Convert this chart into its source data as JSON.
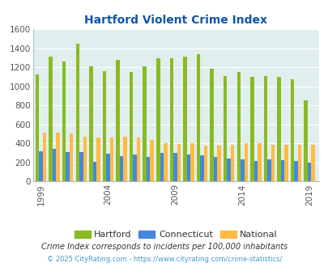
{
  "title": "Hartford Violent Crime Index",
  "years": [
    1999,
    2000,
    2001,
    2002,
    2003,
    2004,
    2005,
    2006,
    2007,
    2008,
    2009,
    2010,
    2011,
    2012,
    2013,
    2014,
    2015,
    2016,
    2017,
    2018,
    2019
  ],
  "hartford": [
    1130,
    1310,
    1260,
    1450,
    1210,
    1160,
    1280,
    1150,
    1210,
    1300,
    1300,
    1310,
    1340,
    1190,
    1110,
    1155,
    1100,
    1105,
    1100,
    1075,
    855
  ],
  "connecticut": [
    320,
    345,
    310,
    310,
    210,
    290,
    270,
    280,
    260,
    305,
    300,
    280,
    275,
    260,
    245,
    230,
    215,
    230,
    225,
    215,
    195
  ],
  "national": [
    510,
    510,
    505,
    475,
    465,
    465,
    475,
    465,
    440,
    405,
    395,
    400,
    375,
    380,
    390,
    405,
    400,
    390,
    385,
    390,
    385
  ],
  "hartford_color": "#88bb22",
  "connecticut_color": "#4488dd",
  "national_color": "#ffbb44",
  "bg_color": "#e0eeee",
  "ylim": [
    0,
    1600
  ],
  "yticks": [
    0,
    200,
    400,
    600,
    800,
    1000,
    1200,
    1400,
    1600
  ],
  "xlabel_ticks": [
    1999,
    2004,
    2009,
    2014,
    2019
  ],
  "title_color": "#1155aa",
  "subtitle": "Crime Index corresponds to incidents per 100,000 inhabitants",
  "footer": "© 2025 CityRating.com - https://www.cityrating.com/crime-statistics/",
  "footer_color": "#4499cc",
  "subtitle_color": "#333333",
  "bar_width": 0.27,
  "grid_color": "#ffffff"
}
